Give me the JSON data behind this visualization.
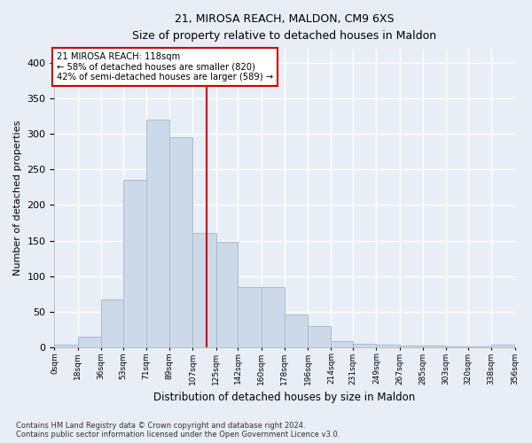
{
  "title": "21, MIROSA REACH, MALDON, CM9 6XS",
  "subtitle": "Size of property relative to detached houses in Maldon",
  "xlabel": "Distribution of detached houses by size in Maldon",
  "ylabel": "Number of detached properties",
  "bar_color": "#ccd9e8",
  "bar_edgecolor": "#aabbd0",
  "bg_color": "#e8eef5",
  "grid_color": "#ffffff",
  "vline_x": 118,
  "vline_color": "#cc0000",
  "annotation_text": "21 MIROSA REACH: 118sqm\n← 58% of detached houses are smaller (820)\n42% of semi-detached houses are larger (589) →",
  "annotation_box_color": "#ffffff",
  "annotation_box_edgecolor": "#cc0000",
  "footnote": "Contains HM Land Registry data © Crown copyright and database right 2024.\nContains public sector information licensed under the Open Government Licence v3.0.",
  "bin_edges": [
    0,
    18,
    36,
    53,
    71,
    89,
    107,
    125,
    142,
    160,
    178,
    196,
    214,
    231,
    249,
    267,
    285,
    303,
    320,
    338,
    356
  ],
  "bin_labels": [
    "0sqm",
    "18sqm",
    "36sqm",
    "53sqm",
    "71sqm",
    "89sqm",
    "107sqm",
    "125sqm",
    "142sqm",
    "160sqm",
    "178sqm",
    "196sqm",
    "214sqm",
    "231sqm",
    "249sqm",
    "267sqm",
    "285sqm",
    "303sqm",
    "320sqm",
    "338sqm",
    "356sqm"
  ],
  "counts": [
    3,
    15,
    67,
    235,
    320,
    295,
    160,
    148,
    84,
    84,
    46,
    30,
    8,
    5,
    4,
    2,
    2,
    1,
    1,
    3
  ],
  "ylim": [
    0,
    420
  ],
  "yticks": [
    0,
    50,
    100,
    150,
    200,
    250,
    300,
    350,
    400
  ]
}
